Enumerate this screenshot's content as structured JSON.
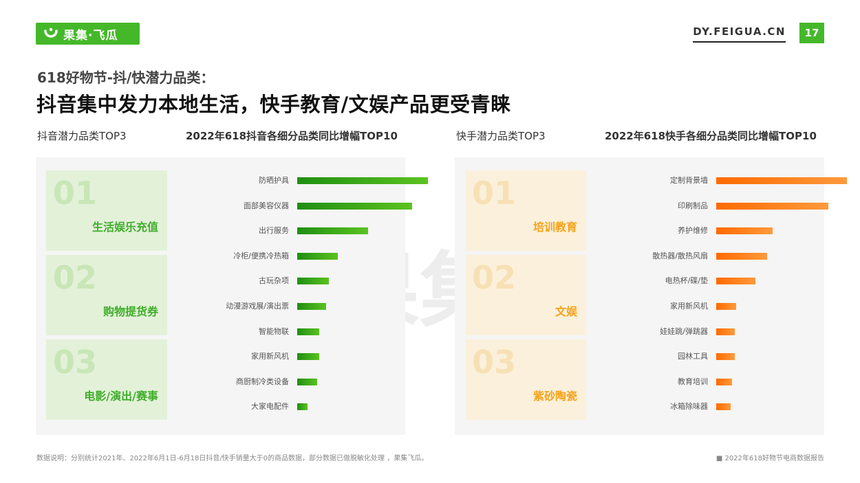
{
  "header": {
    "logo_text": "果集·飞瓜",
    "site": "DY.FEIGUA.CN",
    "page_number": "17",
    "brand_color": "#45b82a"
  },
  "subtitle": "618好物节-抖/快潜力品类：",
  "title": "抖音集中发力本地生活，快手教育/文娱产品更受青睐",
  "watermark_text": "果集·飞瓜",
  "left": {
    "section_label": "抖音潜力品类TOP3",
    "chart_label": "2022年618抖音各细分品类同比增幅TOP10",
    "top3": [
      {
        "rank": "01",
        "name": "生活娱乐充值"
      },
      {
        "rank": "02",
        "name": "购物提货券"
      },
      {
        "rank": "03",
        "name": "电影/演出/赛事"
      }
    ]
  },
  "right": {
    "section_label": "快手潜力品类TOP3",
    "chart_label": "2022年618快手各细分品类同比增幅TOP10",
    "top3": [
      {
        "rank": "01",
        "name": "培训教育"
      },
      {
        "rank": "02",
        "name": "文娱"
      },
      {
        "rank": "03",
        "name": "紫砂陶瓷"
      }
    ]
  },
  "footer": {
    "note": "数据说明：分别统计2021年、2022年6月1日-6月18日抖音/快手销量大于0的商品数据，部分数据已做脱敏化处理 ，果集飞瓜。",
    "source": "■ 2022年618好物节电商数据报告"
  },
  "chart_data": [
    {
      "type": "bar",
      "orientation": "horizontal",
      "title": "2022年618抖音各细分品类同比增幅TOP10",
      "categories": [
        "防晒护具",
        "面部美容仪器",
        "出行服务",
        "冷柜/便携冷热箱",
        "古玩杂项",
        "动漫游戏展/演出票",
        "智能物联",
        "家用新风机",
        "商厨制冷类设备",
        "大家电配件"
      ],
      "values": [
        100,
        88,
        54,
        31,
        24,
        22,
        17,
        17,
        15,
        8
      ],
      "value_unit": "relative bar length (axis not labeled)",
      "colors": [
        "#1f8e12",
        "#5bc320"
      ]
    },
    {
      "type": "bar",
      "orientation": "horizontal",
      "title": "2022年618快手各细分品类同比增幅TOP10",
      "categories": [
        "定制背景墙",
        "印刷制品",
        "养护维修",
        "散热器/散热风扇",
        "电热杯/碟/垫",
        "家用新风机",
        "娃娃跳/弹跳器",
        "园林工具",
        "教育培训",
        "冰箱除味器"
      ],
      "values": [
        100,
        86,
        43,
        39,
        30,
        15,
        14,
        14,
        12,
        11
      ],
      "value_unit": "relative bar length (axis not labeled)",
      "colors": [
        "#ff6a00",
        "#ff9a3c"
      ]
    }
  ]
}
